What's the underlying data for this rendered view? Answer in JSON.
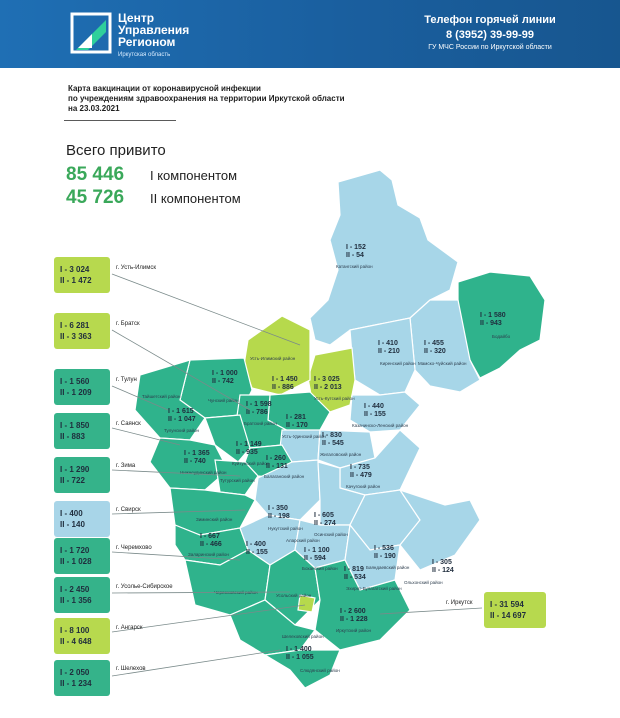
{
  "header": {
    "org_line1": "Центр",
    "org_line2": "Управления",
    "org_line3": "Регионом",
    "org_region": "Иркутская область",
    "hotline_title": "Телефон горячей линии",
    "hotline_phone": "8 (3952) 39-99-99",
    "hotline_org": "ГУ МЧС России по Иркутской области"
  },
  "title": {
    "line1": "Карта вакцинации от коронавирусной инфекции",
    "line2": "по учреждениям здравоохранения на территории Иркутской области",
    "line3": "на 23.03.2021"
  },
  "totals": {
    "label": "Всего привито",
    "first_value": "85 446",
    "first_label": "I компонентом",
    "second_value": "45 726",
    "second_label": "II компонентом"
  },
  "colors": {
    "light": "#a7d6e8",
    "green": "#2fb38c",
    "lime": "#b6d94c",
    "header": "#1f6fb4"
  },
  "callouts": [
    {
      "city": "г. Усть-Илимск",
      "first": "I - 3 024",
      "second": "II - 1 472",
      "style": "lime"
    },
    {
      "city": "г. Братск",
      "first": "I - 6 281",
      "second": "II - 3 363",
      "style": "lime"
    },
    {
      "city": "г. Тулун",
      "first": "I - 1 560",
      "second": "II - 1 209",
      "style": "green"
    },
    {
      "city": "г. Саянск",
      "first": "I - 1 850",
      "second": "II - 883",
      "style": "green"
    },
    {
      "city": "г. Зима",
      "first": "I - 1 290",
      "second": "II - 722",
      "style": "green"
    },
    {
      "city": "г. Свирск",
      "first": "I - 400",
      "second": "II - 140",
      "style": "light"
    },
    {
      "city": "г. Черемхово",
      "first": "I - 1 720",
      "second": "II - 1 028",
      "style": "green"
    },
    {
      "city": "г. Усолье-Сибирское",
      "first": "I - 2 450",
      "second": "II - 1 356",
      "style": "green"
    },
    {
      "city": "г. Ангарск",
      "first": "I - 8 100",
      "second": "II - 4 648",
      "style": "lime"
    },
    {
      "city": "г. Шелехов",
      "first": "I - 2 050",
      "second": "II - 1 234",
      "style": "green"
    },
    {
      "city": "г. Иркутск",
      "first": "I - 31 594",
      "second": "II - 14 697",
      "style": "lime"
    }
  ],
  "districts": [
    {
      "name": "Катангский район",
      "first": "I - 152",
      "second": "II - 54"
    },
    {
      "name": "Бодайбо",
      "first": "I - 1 580",
      "second": "II - 943"
    },
    {
      "name": "Киренский район",
      "first": "I - 410",
      "second": "II - 210"
    },
    {
      "name": "Мамско-Чуйский район",
      "first": "I - 455",
      "second": "II - 320"
    },
    {
      "name": "Усть-Кутский район",
      "first": "I - 3 025",
      "second": "II - 2 013"
    },
    {
      "name": "Нижнеилимский район",
      "first": "I - 1 450",
      "second": "II - 886"
    },
    {
      "name": "Усть-Илимский район",
      "first": "",
      "second": ""
    },
    {
      "name": "Чунский район",
      "first": "I - 1 000",
      "second": "II - 742"
    },
    {
      "name": "Братский район",
      "first": "I - 1 598",
      "second": "II - 786"
    },
    {
      "name": "Тулунский район",
      "first": "I - 1 615",
      "second": "II - 1 047"
    },
    {
      "name": "Усть-Удинский район",
      "first": "I - 281",
      "second": "II - 170"
    },
    {
      "name": "Казачинско-Ленский район",
      "first": "I - 440",
      "second": "II - 155"
    },
    {
      "name": "Жигаловский район",
      "first": "I - 830",
      "second": "II - 545"
    },
    {
      "name": "Куйтунский район",
      "first": "I - 1 149",
      "second": "II - 935"
    },
    {
      "name": "Балаганский район",
      "first": "I - 260",
      "second": "II - 131"
    },
    {
      "name": "Нижнеудинский район",
      "first": "I - 1 365",
      "second": "II - 740"
    },
    {
      "name": "Качугский район",
      "first": "I - 735",
      "second": "II - 479"
    },
    {
      "name": "Тайшетский район",
      "first": "",
      "second": ""
    },
    {
      "name": "Тутурский район",
      "first": "",
      "second": ""
    },
    {
      "name": "Нукутский район",
      "first": "I - 350",
      "second": "II - 198"
    },
    {
      "name": "Осинский район",
      "first": "I - 605",
      "second": "II - 274"
    },
    {
      "name": "Зиминский район",
      "first": "I - 667",
      "second": "II - 466"
    },
    {
      "name": "Заларинский район",
      "first": "",
      "second": ""
    },
    {
      "name": "Аларский район",
      "first": "I - 400",
      "second": "II - 155"
    },
    {
      "name": "Боханский район",
      "first": "I - 1 100",
      "second": "II - 594"
    },
    {
      "name": "Баяндаевский район",
      "first": "I - 536",
      "second": "II - 190"
    },
    {
      "name": "Ольхонский район",
      "first": "I - 305",
      "second": "II - 124"
    },
    {
      "name": "Эхирит-Булагатский район",
      "first": "I - 819",
      "second": "II - 534"
    },
    {
      "name": "Черемховский район",
      "first": "",
      "second": ""
    },
    {
      "name": "Усольский район",
      "first": "",
      "second": ""
    },
    {
      "name": "Иркутский район",
      "first": "I - 2 600",
      "second": "II - 1 228"
    },
    {
      "name": "Шелеховский район",
      "first": "I - 1 400",
      "second": "II - 1 055"
    },
    {
      "name": "Слюдянский район",
      "first": "",
      "second": ""
    }
  ]
}
